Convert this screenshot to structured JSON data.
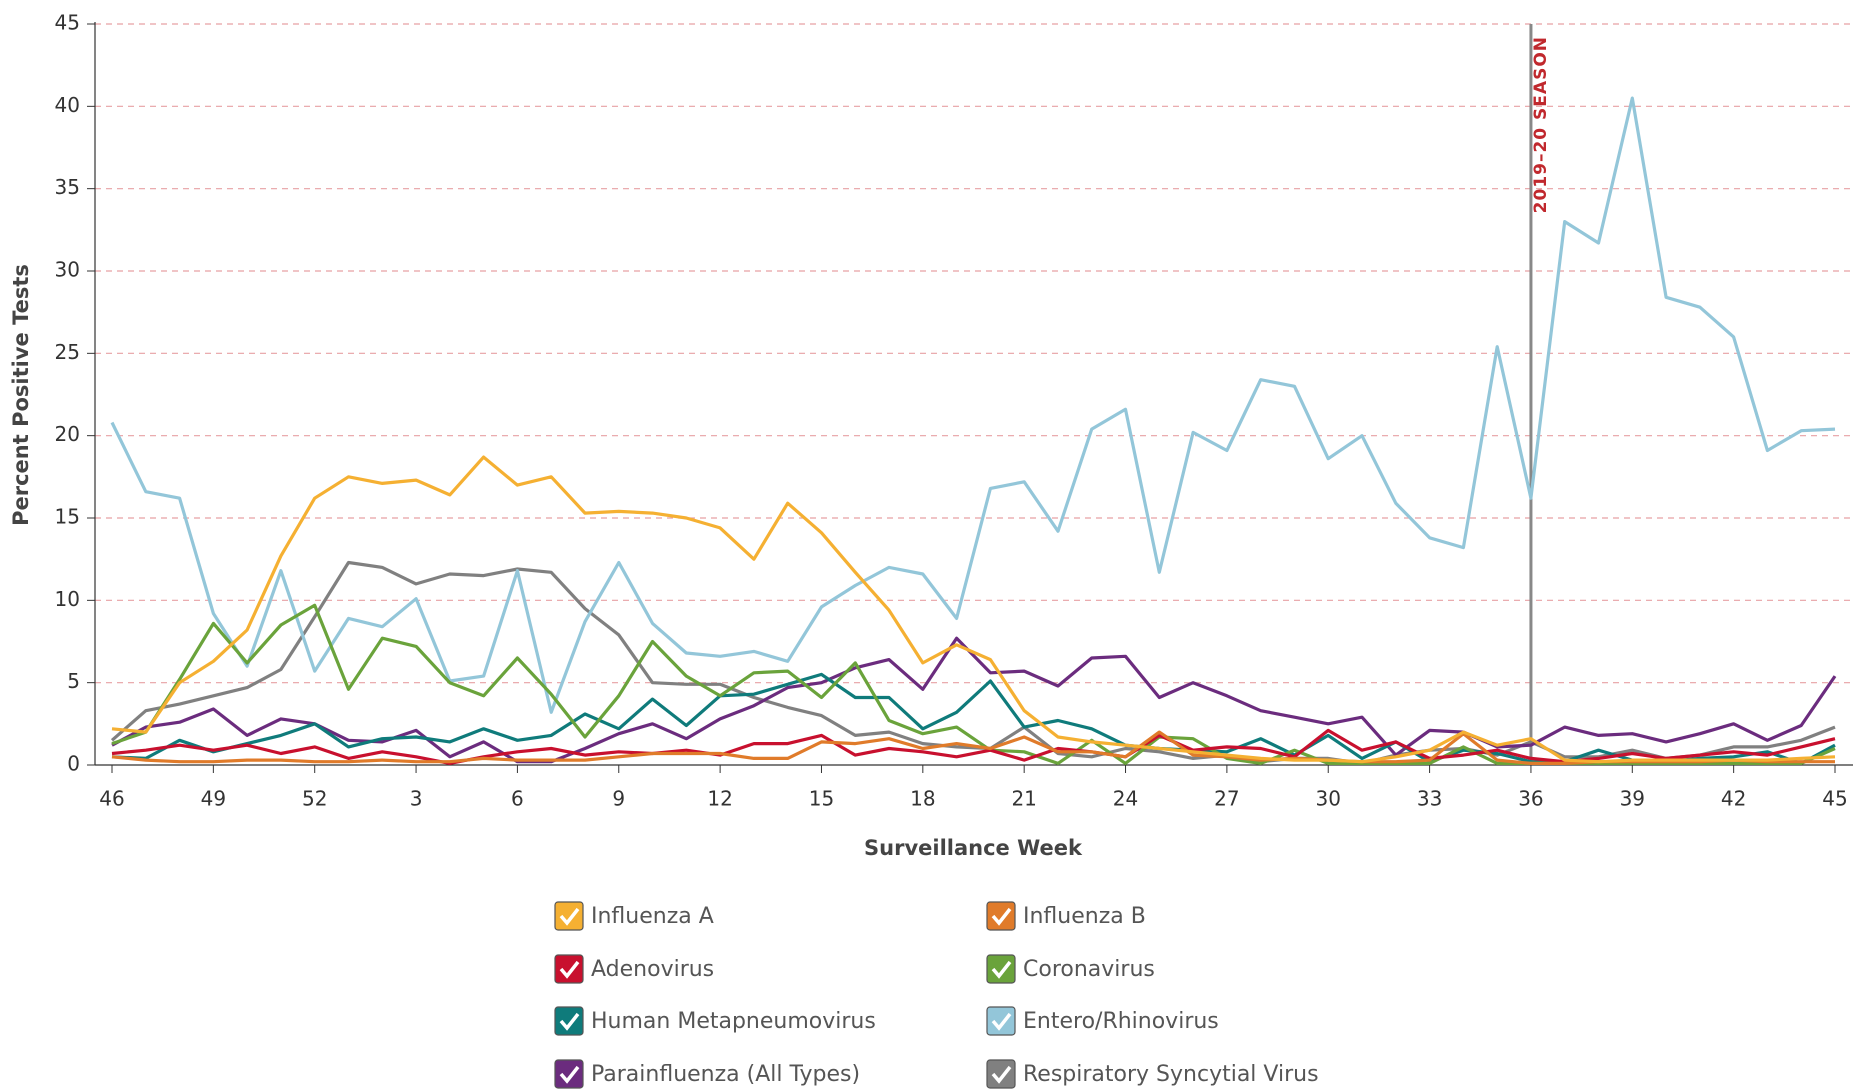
{
  "chart_data": {
    "type": "line",
    "xlabel": "Surveillance Week",
    "ylabel": "Percent Positive Tests",
    "categories": [
      "46",
      null,
      null,
      "49",
      null,
      null,
      "52",
      null,
      null,
      "3",
      null,
      null,
      "6",
      null,
      null,
      "9",
      null,
      null,
      "12",
      null,
      null,
      "15",
      null,
      null,
      "18",
      null,
      null,
      "21",
      null,
      null,
      "24",
      null,
      null,
      "27",
      null,
      null,
      "30",
      null,
      null,
      "33",
      null,
      null,
      "36",
      null,
      null,
      "39",
      null,
      null,
      "42",
      null,
      null,
      "45"
    ],
    "ylim": [
      0,
      45
    ],
    "yticks": [
      0,
      5,
      10,
      15,
      20,
      25,
      30,
      35,
      40,
      45
    ],
    "grid": true,
    "annotation": {
      "text": "2019–20 SEASON",
      "x": "36"
    },
    "series": [
      {
        "name": "Influenza A",
        "color": "#f5b032",
        "values": [
          2.2,
          2.0,
          5.0,
          6.3,
          8.2,
          12.7,
          16.2,
          17.5,
          17.1,
          17.3,
          16.4,
          18.7,
          17.0,
          17.5,
          15.3,
          15.4,
          15.3,
          15.0,
          14.4,
          12.5,
          15.9,
          14.1,
          11.7,
          9.4,
          6.2,
          7.3,
          6.4,
          3.3,
          1.7,
          1.4,
          1.2,
          1.0,
          0.8,
          0.6,
          0.4,
          0.3,
          0.3,
          0.2,
          0.5,
          0.9,
          2.0,
          1.2,
          1.6,
          0.3,
          0.2,
          0.3,
          0.3,
          0.3,
          0.3,
          0.3,
          0.4,
          0.5
        ]
      },
      {
        "name": "Influenza B",
        "color": "#e07b2a",
        "values": [
          0.5,
          0.3,
          0.2,
          0.2,
          0.3,
          0.3,
          0.2,
          0.2,
          0.3,
          0.2,
          0.2,
          0.4,
          0.3,
          0.3,
          0.3,
          0.5,
          0.7,
          0.7,
          0.7,
          0.4,
          0.4,
          1.4,
          1.3,
          1.6,
          1.0,
          1.3,
          1.0,
          1.7,
          0.8,
          0.8,
          0.5,
          2.0,
          0.6,
          0.5,
          0.3,
          0.4,
          0.3,
          0.2,
          0.2,
          0.3,
          1.9,
          0.3,
          0.1,
          0.1,
          0.2,
          0.2,
          0.2,
          0.2,
          0.3,
          0.2,
          0.2,
          0.2
        ]
      },
      {
        "name": "Adenovirus",
        "color": "#c8102e",
        "values": [
          0.7,
          0.9,
          1.2,
          0.9,
          1.2,
          0.7,
          1.1,
          0.4,
          0.8,
          0.5,
          0.1,
          0.5,
          0.8,
          1.0,
          0.6,
          0.8,
          0.7,
          0.9,
          0.6,
          1.3,
          1.3,
          1.8,
          0.6,
          1.0,
          0.8,
          0.5,
          0.9,
          0.3,
          1.0,
          0.8,
          0.5,
          1.8,
          0.9,
          1.1,
          1.0,
          0.5,
          2.1,
          0.9,
          1.4,
          0.4,
          0.6,
          0.9,
          0.4,
          0.2,
          0.4,
          0.7,
          0.4,
          0.6,
          0.8,
          0.6,
          1.1,
          1.6
        ]
      },
      {
        "name": "Coronavirus",
        "color": "#6aa33b",
        "values": [
          1.3,
          2.0,
          5.2,
          8.6,
          6.2,
          8.5,
          9.7,
          4.6,
          7.7,
          7.2,
          5.0,
          4.2,
          6.5,
          4.3,
          1.7,
          4.2,
          7.5,
          5.4,
          4.2,
          5.6,
          5.7,
          4.1,
          6.2,
          2.7,
          1.9,
          2.3,
          0.9,
          0.8,
          0.1,
          1.5,
          0.1,
          1.7,
          1.6,
          0.4,
          0.1,
          0.9,
          0.1,
          0.1,
          0.1,
          0.1,
          1.1,
          0.1,
          0.1,
          0.1,
          0.1,
          0.1,
          0.1,
          0.1,
          0.1,
          0.1,
          0.1,
          1.0
        ]
      },
      {
        "name": "Human Metapneumovirus",
        "color": "#0f7b7b",
        "values": [
          0.5,
          0.4,
          1.5,
          0.8,
          1.3,
          1.8,
          2.5,
          1.1,
          1.6,
          1.7,
          1.4,
          2.2,
          1.5,
          1.8,
          3.1,
          2.2,
          4.0,
          2.4,
          4.2,
          4.3,
          4.9,
          5.5,
          4.1,
          4.1,
          2.2,
          3.2,
          5.1,
          2.3,
          2.7,
          2.2,
          1.2,
          1.0,
          0.9,
          0.8,
          1.6,
          0.6,
          1.8,
          0.4,
          1.4,
          0.2,
          0.9,
          0.7,
          0.2,
          0.2,
          0.9,
          0.3,
          0.2,
          0.4,
          0.5,
          0.8,
          0.1,
          1.2
        ]
      },
      {
        "name": "Entero/Rhinovirus",
        "color": "#93c6d9",
        "values": [
          20.8,
          16.6,
          16.2,
          9.2,
          6.0,
          11.8,
          5.7,
          8.9,
          8.4,
          10.1,
          5.1,
          5.4,
          11.8,
          3.2,
          8.7,
          12.3,
          8.6,
          6.8,
          6.6,
          6.9,
          6.3,
          9.6,
          10.9,
          12.0,
          11.6,
          8.9,
          16.8,
          17.2,
          14.2,
          20.4,
          21.6,
          11.7,
          20.2,
          19.1,
          23.4,
          23.0,
          18.6,
          20.0,
          15.9,
          13.8,
          13.2,
          25.4,
          16.2,
          33.0,
          31.7,
          40.5,
          28.4,
          27.8,
          26.0,
          19.1,
          20.3,
          20.4
        ]
      },
      {
        "name": "Parainfluenza (All Types)",
        "color": "#6b2c7e",
        "values": [
          1.2,
          2.3,
          2.6,
          3.4,
          1.8,
          2.8,
          2.5,
          1.5,
          1.4,
          2.1,
          0.5,
          1.4,
          0.2,
          0.2,
          1.0,
          1.9,
          2.5,
          1.6,
          2.8,
          3.6,
          4.7,
          5.0,
          5.9,
          6.4,
          4.6,
          7.7,
          5.6,
          5.7,
          4.8,
          6.5,
          6.6,
          4.1,
          5.0,
          4.2,
          3.3,
          2.9,
          2.5,
          2.9,
          0.6,
          2.1,
          2.0,
          1.1,
          1.2,
          2.3,
          1.8,
          1.9,
          1.4,
          1.9,
          2.5,
          1.5,
          2.4,
          5.4
        ]
      },
      {
        "name": "Respiratory Syncytial Virus",
        "color": "#808080",
        "values": [
          1.5,
          3.3,
          3.7,
          4.2,
          4.7,
          5.8,
          9.0,
          12.3,
          12.0,
          11.0,
          11.6,
          11.5,
          11.9,
          11.7,
          9.5,
          7.9,
          5.0,
          4.9,
          4.9,
          4.1,
          3.5,
          3.0,
          1.8,
          2.0,
          1.3,
          1.1,
          1.0,
          2.3,
          0.7,
          0.5,
          1.0,
          0.8,
          0.4,
          0.6,
          0.2,
          0.4,
          0.4,
          0.1,
          0.6,
          0.9,
          1.0,
          0.6,
          1.4,
          0.5,
          0.5,
          0.9,
          0.4,
          0.6,
          1.1,
          1.1,
          1.5,
          2.3
        ]
      }
    ]
  }
}
